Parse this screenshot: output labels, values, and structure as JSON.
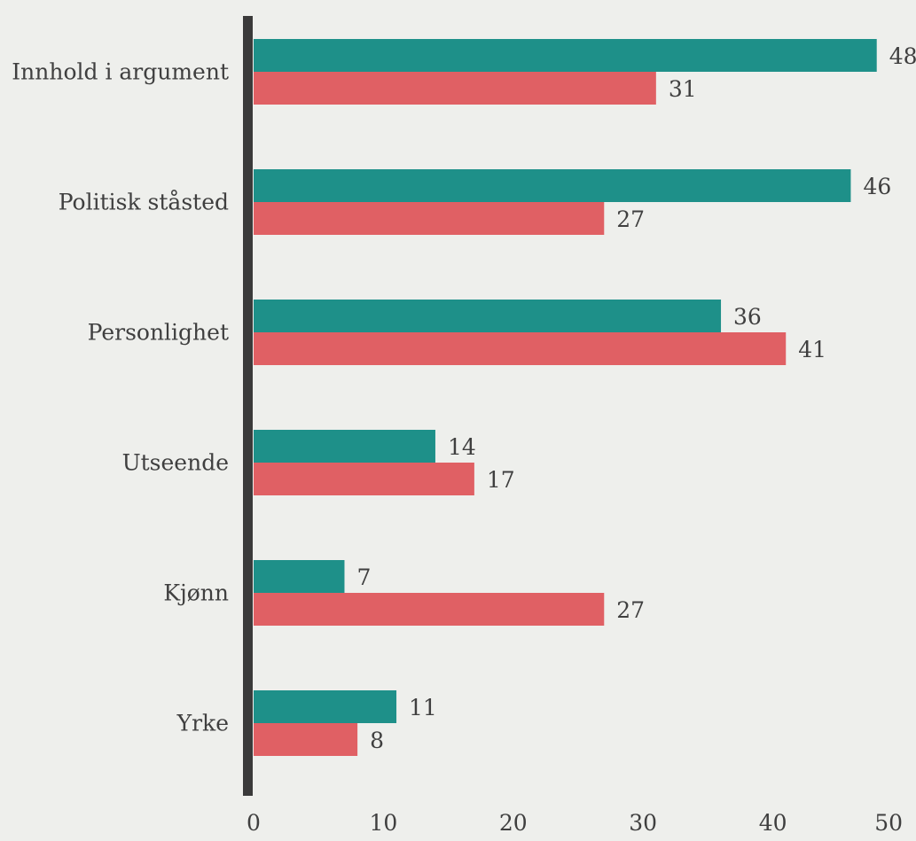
{
  "chart_data": {
    "type": "bar",
    "orientation": "horizontal",
    "categories": [
      "Innhold i argument",
      "Politisk ståsted",
      "Personlighet",
      "Utseende",
      "Kjønn",
      "Yrke"
    ],
    "series": [
      {
        "values": [
          48,
          46,
          36,
          14,
          7,
          11
        ],
        "color": "#1e9089"
      },
      {
        "values": [
          31,
          27,
          41,
          17,
          27,
          8
        ],
        "color": "#e06064"
      }
    ],
    "xlim": [
      0,
      50
    ],
    "xticks": [
      0,
      10,
      20,
      30,
      40,
      50
    ],
    "grid": false,
    "title": "",
    "xlabel": "",
    "ylabel": ""
  },
  "colors": {
    "background": "#eeefec",
    "axis": "#3a3a3a",
    "text": "#3f3f3f"
  }
}
